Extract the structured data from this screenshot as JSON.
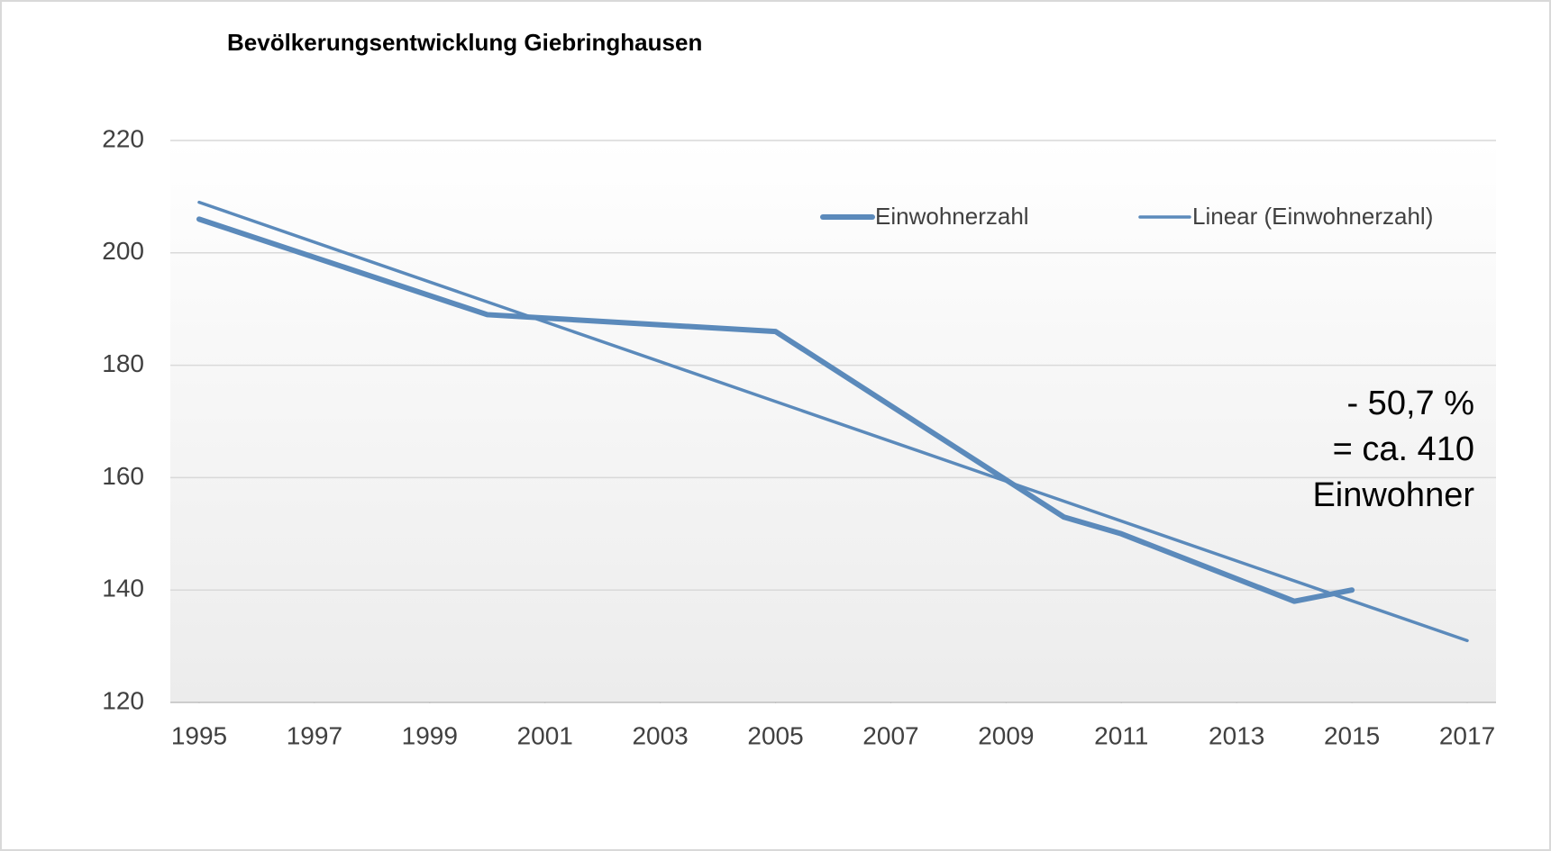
{
  "chart_data": {
    "type": "line",
    "title": "Bevölkerungsentwicklung Giebringhausen",
    "series": [
      {
        "name": "Einwohnerzahl",
        "color": "#5b8abb",
        "x": [
          1995,
          2000,
          2005,
          2010,
          2011,
          2014,
          2015
        ],
        "values": [
          206,
          189,
          186,
          153,
          150,
          138,
          140
        ]
      },
      {
        "name": "Linear (Einwohnerzahl)",
        "color": "#5b8abb",
        "x": [
          1995,
          2017
        ],
        "values": [
          209,
          131
        ]
      }
    ],
    "xlim": [
      1994.5,
      2017.5
    ],
    "xticks": [
      1995,
      1997,
      1999,
      2001,
      2003,
      2005,
      2007,
      2009,
      2011,
      2013,
      2015,
      2017
    ],
    "ylim": [
      120,
      220
    ],
    "yticks": [
      120,
      140,
      160,
      180,
      200,
      220
    ],
    "grid": true,
    "legend": "top-right",
    "annotation": [
      "- 50,7 %",
      "= ca. 410",
      "Einwohner"
    ]
  }
}
